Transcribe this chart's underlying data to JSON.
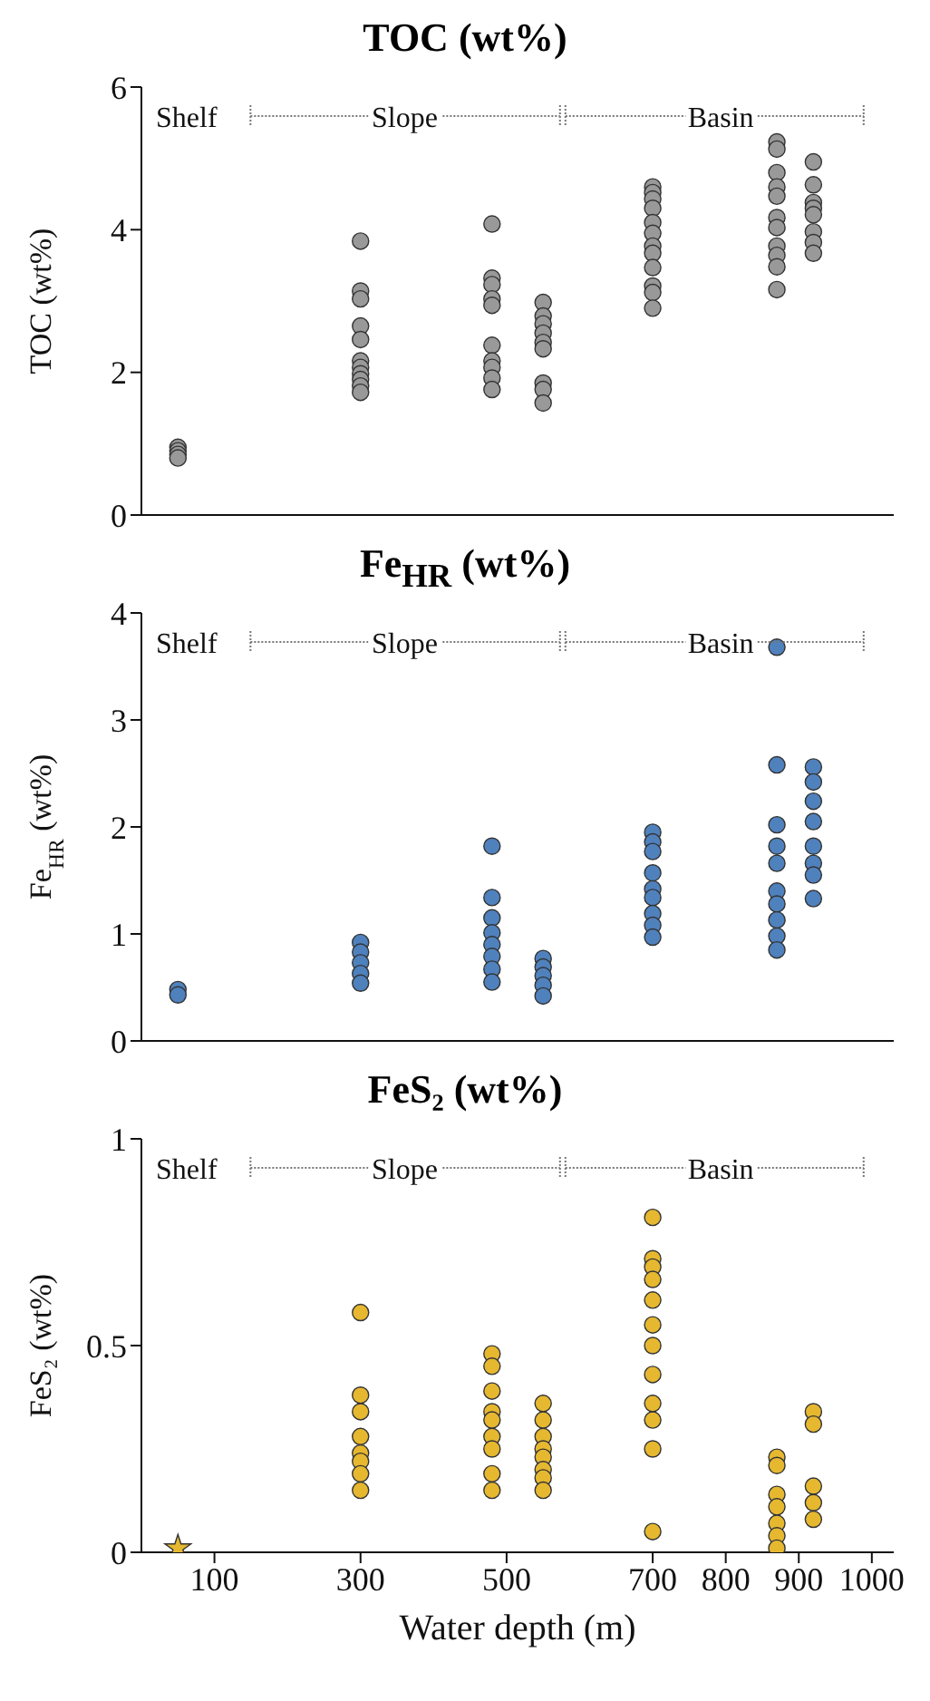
{
  "chart_data": [
    {
      "type": "scatter",
      "title": "TOC (wt%)",
      "ylabel": "TOC (wt%)",
      "marker": "circle",
      "tick_labels": "y",
      "xlim": [
        0,
        1030
      ],
      "xticks": [
        100,
        300,
        500,
        700,
        800,
        900,
        1000
      ],
      "ylim": [
        0,
        6
      ],
      "yticks": [
        0,
        2,
        4,
        6
      ],
      "annotations": [
        "Shelf",
        "Slope",
        "Basin"
      ],
      "series": [
        {
          "color": "#999999",
          "x": [
            50,
            50,
            50,
            50,
            300,
            300,
            300,
            300,
            300,
            300,
            300,
            300,
            300,
            300,
            300,
            480,
            480,
            480,
            480,
            480,
            480,
            480,
            480,
            480,
            480,
            550,
            550,
            550,
            550,
            550,
            550,
            550,
            550,
            550,
            700,
            700,
            700,
            700,
            700,
            700,
            700,
            700,
            700,
            700,
            700,
            700,
            870,
            870,
            870,
            870,
            870,
            870,
            870,
            870,
            870,
            870,
            870,
            920,
            920,
            920,
            920,
            920,
            920,
            920,
            920
          ],
          "values": [
            0.95,
            0.9,
            0.85,
            0.8,
            3.84,
            3.14,
            3.03,
            2.65,
            2.46,
            2.16,
            2.07,
            1.98,
            1.9,
            1.81,
            1.72,
            4.08,
            3.32,
            3.23,
            3.03,
            2.94,
            2.38,
            2.16,
            2.07,
            1.92,
            1.76,
            2.98,
            2.79,
            2.68,
            2.55,
            2.42,
            2.33,
            1.85,
            1.76,
            1.57,
            4.6,
            4.52,
            4.43,
            4.3,
            4.1,
            3.95,
            3.77,
            3.67,
            3.47,
            3.21,
            3.12,
            2.9,
            5.23,
            5.13,
            4.8,
            4.6,
            4.47,
            4.17,
            4.03,
            3.77,
            3.64,
            3.48,
            3.16,
            4.95,
            4.63,
            4.38,
            4.3,
            4.21,
            3.97,
            3.82,
            3.67
          ]
        }
      ]
    },
    {
      "type": "scatter",
      "title": "Fe$_{HR}$ (wt%)",
      "ylabel": "Fe$_{HR}$ (wt%)",
      "marker": "circle",
      "tick_labels": "y",
      "xlim": [
        0,
        1030
      ],
      "xticks": [
        100,
        300,
        500,
        700,
        800,
        900,
        1000
      ],
      "ylim": [
        0,
        4
      ],
      "yticks": [
        0,
        1,
        2,
        3,
        4
      ],
      "annotations": [
        "Shelf",
        "Slope",
        "Basin"
      ],
      "series": [
        {
          "color": "#4f81bd",
          "x": [
            50,
            50,
            300,
            300,
            300,
            300,
            300,
            480,
            480,
            480,
            480,
            480,
            480,
            480,
            480,
            550,
            550,
            550,
            550,
            550,
            700,
            700,
            700,
            700,
            700,
            700,
            700,
            700,
            700,
            870,
            870,
            870,
            870,
            870,
            870,
            870,
            870,
            870,
            870,
            920,
            920,
            920,
            920,
            920,
            920,
            920,
            920
          ],
          "values": [
            0.48,
            0.43,
            0.92,
            0.83,
            0.73,
            0.63,
            0.54,
            1.82,
            1.34,
            1.15,
            1.01,
            0.9,
            0.79,
            0.67,
            0.55,
            0.77,
            0.69,
            0.61,
            0.52,
            0.42,
            1.95,
            1.86,
            1.77,
            1.57,
            1.42,
            1.34,
            1.19,
            1.08,
            0.97,
            3.68,
            2.58,
            2.02,
            1.82,
            1.66,
            1.4,
            1.28,
            1.13,
            0.98,
            0.85,
            2.56,
            2.42,
            2.24,
            2.05,
            1.82,
            1.66,
            1.55,
            1.33
          ]
        }
      ]
    },
    {
      "type": "scatter",
      "title": "FeS₂ (wt%)",
      "ylabel": "FeS₂ (wt%)",
      "xlabel": "Water depth (m)",
      "marker": "circle",
      "xlim": [
        0,
        1030
      ],
      "xticks": [
        100,
        300,
        500,
        700,
        800,
        900,
        1000
      ],
      "ylim": [
        0,
        1
      ],
      "yticks": [
        0,
        0.5,
        1
      ],
      "annotations": [
        "Shelf",
        "Slope",
        "Basin"
      ],
      "series": [
        {
          "color": "#e6b830",
          "marker": "star",
          "x": [
            50
          ],
          "values": [
            0.01
          ]
        },
        {
          "color": "#e6b830",
          "x": [
            300,
            300,
            300,
            300,
            300,
            300,
            300,
            300,
            480,
            480,
            480,
            480,
            480,
            480,
            480,
            480,
            480,
            550,
            550,
            550,
            550,
            550,
            550,
            550,
            550,
            700,
            700,
            700,
            700,
            700,
            700,
            700,
            700,
            700,
            700,
            700,
            700,
            870,
            870,
            870,
            870,
            870,
            870,
            870,
            920,
            920,
            920,
            920,
            920
          ],
          "values": [
            0.58,
            0.38,
            0.34,
            0.28,
            0.24,
            0.22,
            0.19,
            0.15,
            0.48,
            0.45,
            0.39,
            0.34,
            0.32,
            0.28,
            0.25,
            0.19,
            0.15,
            0.36,
            0.32,
            0.28,
            0.25,
            0.23,
            0.2,
            0.18,
            0.15,
            0.81,
            0.71,
            0.69,
            0.66,
            0.61,
            0.55,
            0.5,
            0.43,
            0.36,
            0.32,
            0.25,
            0.05,
            0.23,
            0.21,
            0.14,
            0.11,
            0.07,
            0.04,
            0.01,
            0.34,
            0.31,
            0.16,
            0.12,
            0.08
          ]
        }
      ]
    }
  ]
}
